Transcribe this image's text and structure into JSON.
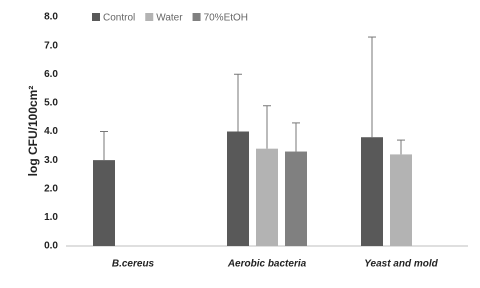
{
  "chart_data": {
    "type": "bar",
    "y_label": "log CFU/100cm²",
    "categories": [
      "B.cereus",
      "Aerobic bacteria",
      "Yeast and mold"
    ],
    "series": [
      {
        "name": "Control",
        "color": "#595959",
        "values": [
          3.0,
          4.0,
          3.8
        ],
        "errors": [
          1.0,
          2.0,
          3.5
        ]
      },
      {
        "name": "Water",
        "color": "#b3b3b3",
        "values": [
          null,
          3.4,
          3.2
        ],
        "errors": [
          null,
          1.5,
          0.5
        ]
      },
      {
        "name": "70%EtOH",
        "color": "#808080",
        "values": [
          null,
          3.3,
          null
        ],
        "errors": [
          null,
          1.0,
          null
        ]
      }
    ],
    "ylim": [
      0,
      8
    ],
    "yticks": [
      {
        "value": 0,
        "label": "0.0"
      },
      {
        "value": 1,
        "label": "1.0"
      },
      {
        "value": 2,
        "label": "2.0"
      },
      {
        "value": 3,
        "label": "3.0"
      },
      {
        "value": 4,
        "label": "4.0"
      },
      {
        "value": 5,
        "label": "5.0"
      },
      {
        "value": 6,
        "label": "6.0"
      },
      {
        "value": 7,
        "label": "7.0"
      },
      {
        "value": 8,
        "label": "8.0"
      }
    ],
    "grid": false
  }
}
